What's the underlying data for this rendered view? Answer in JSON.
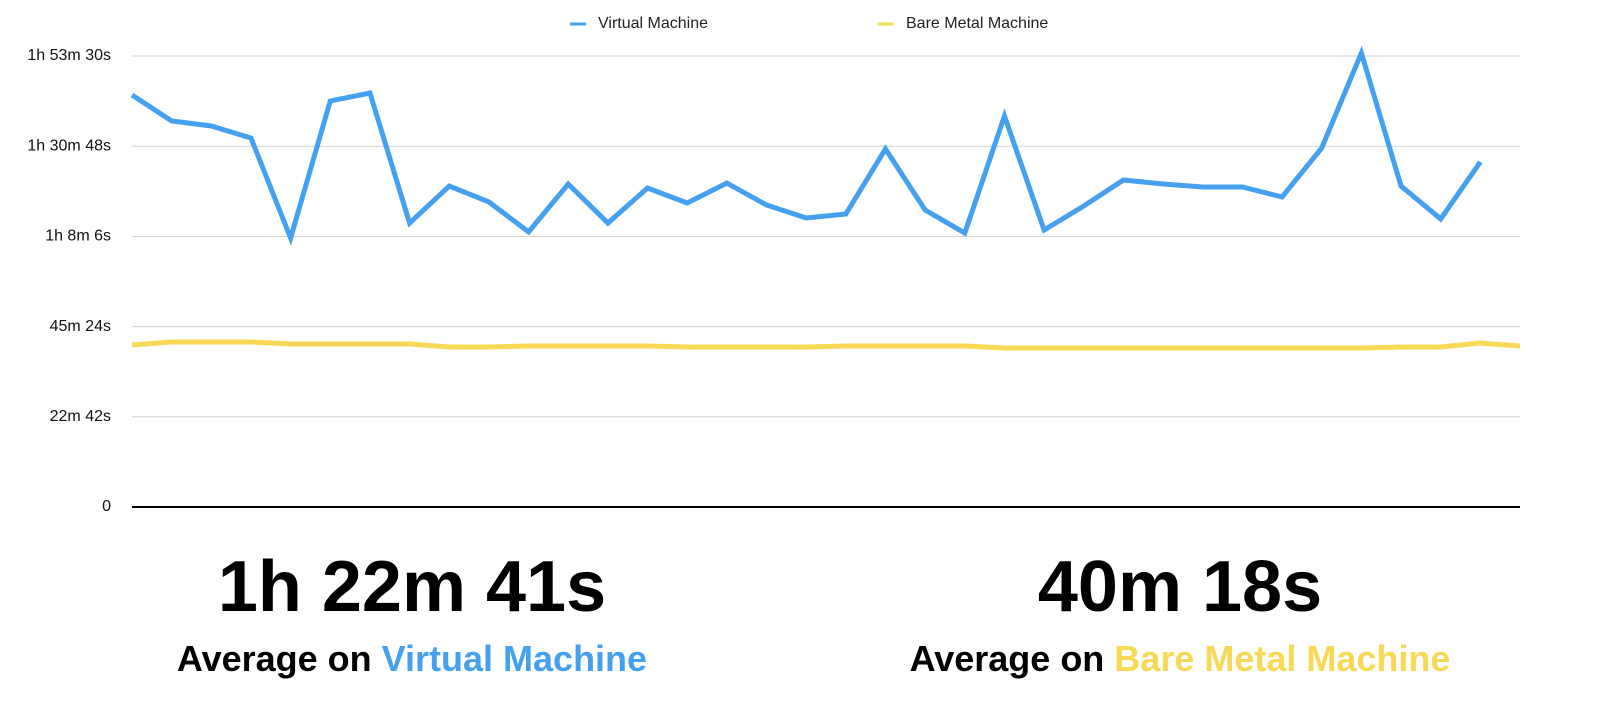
{
  "chart_data": {
    "type": "line",
    "categories": [
      null,
      null,
      null,
      null,
      null,
      null,
      null,
      null,
      null,
      null,
      null,
      null,
      null,
      null,
      null,
      null,
      null,
      null,
      null,
      null,
      null,
      null,
      null,
      null,
      null,
      null,
      null,
      null,
      null,
      null,
      null,
      null,
      null,
      null,
      null,
      null
    ],
    "series": [
      {
        "name": "Virtual Machine",
        "color": "#46a0f0",
        "values": [
          6221,
          5829,
          5753,
          5572,
          4062,
          6131,
          6251,
          4288,
          4847,
          4606,
          4153,
          4877,
          4288,
          4817,
          4590,
          4892,
          4560,
          4364,
          4424,
          5406,
          4485,
          4137,
          5904,
          4183,
          4545,
          4938,
          4877,
          4832,
          4832,
          4681,
          5421,
          6855,
          4847,
          4349,
          5210,
          null
        ]
      },
      {
        "name": "Bare Metal Machine",
        "color": "#f7d955",
        "values": [
          2446,
          2492,
          2492,
          2492,
          2461,
          2461,
          2461,
          2461,
          2416,
          2416,
          2431,
          2431,
          2431,
          2431,
          2416,
          2416,
          2416,
          2416,
          2431,
          2431,
          2431,
          2431,
          2401,
          2401,
          2401,
          2401,
          2401,
          2401,
          2401,
          2401,
          2401,
          2401,
          2416,
          2416,
          2476,
          2431
        ]
      }
    ],
    "ylim": [
      0,
      6810
    ],
    "yticks": [
      0,
      {
        "value": 1362,
        "label": "22m 42s"
      },
      {
        "value": 2724,
        "label": "45m 24s"
      },
      {
        "value": 4086,
        "label": "1h 8m 6s"
      },
      {
        "value": 5448,
        "label": "1h 30m 48s"
      },
      {
        "value": 6810,
        "label": "1h 53m 30s"
      }
    ],
    "grid": true,
    "legend": "top",
    "summary_prefix": "Average on",
    "averages": [
      "1h 22m 41s",
      "40m 18s"
    ]
  }
}
